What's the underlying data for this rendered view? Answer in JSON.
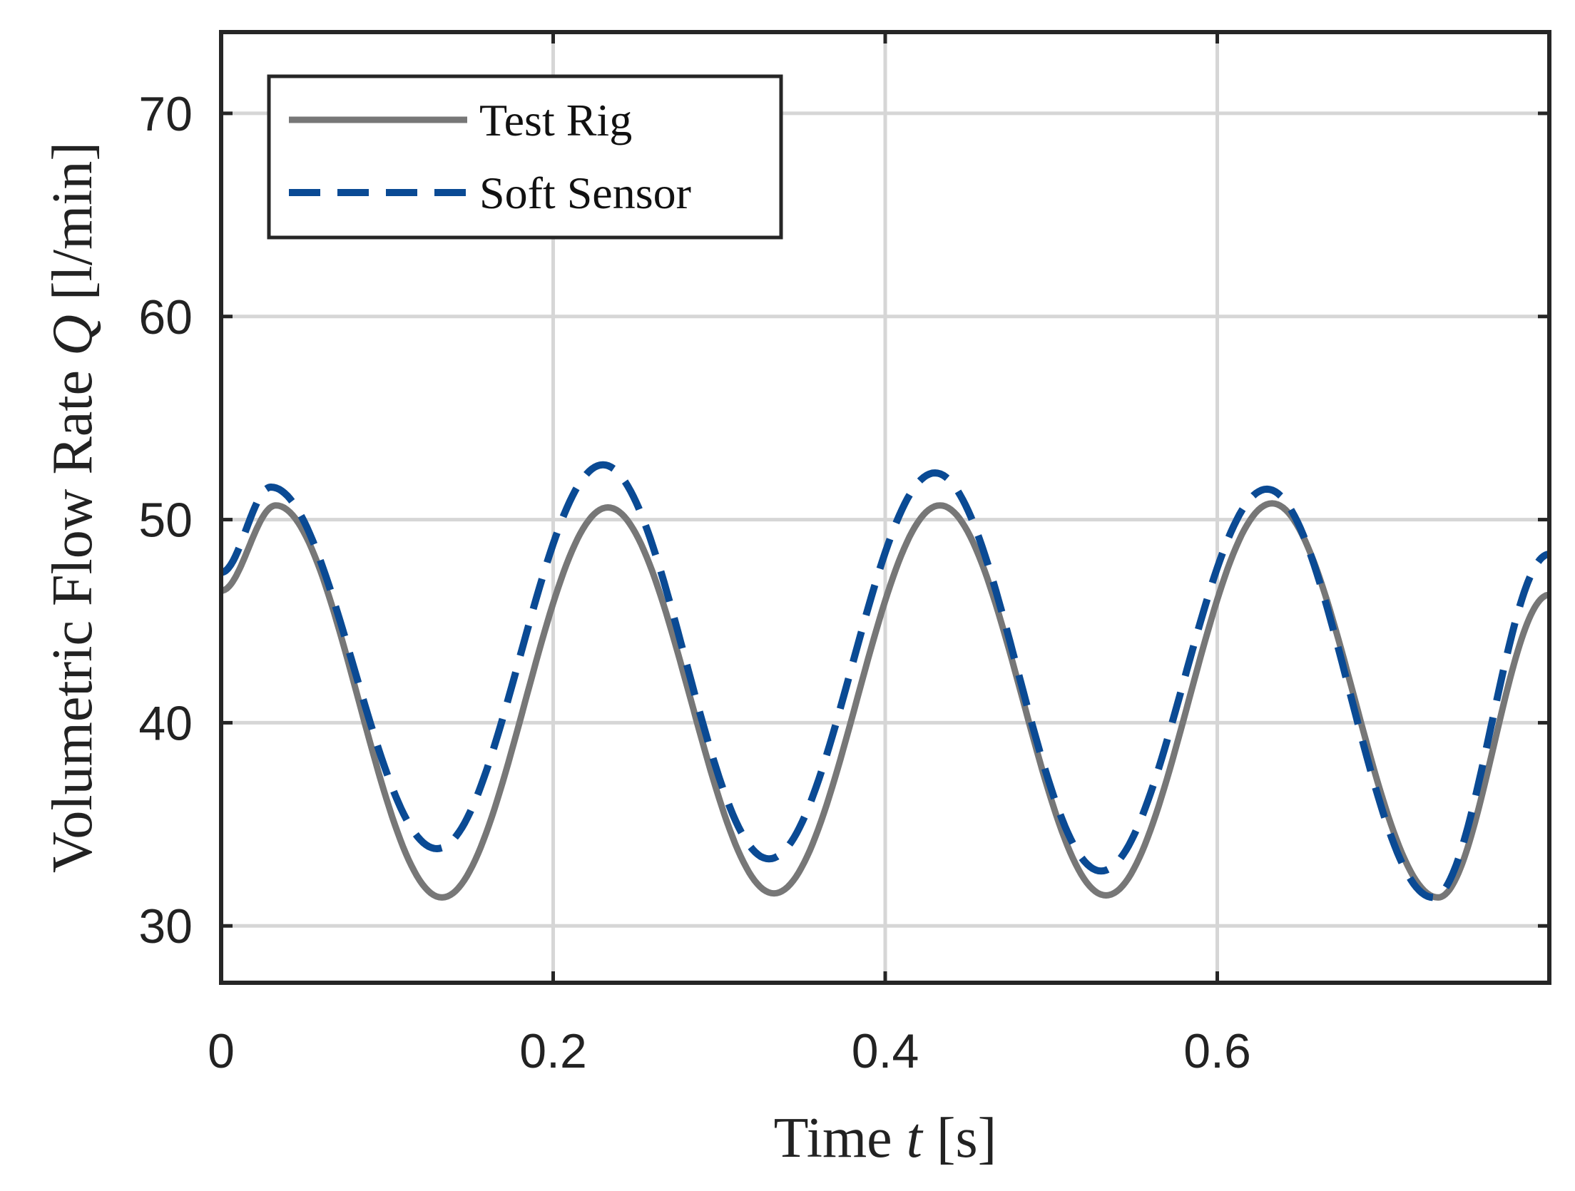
{
  "chart_data": {
    "type": "line",
    "title": "",
    "xlabel": {
      "prefix": "Time ",
      "var": "t",
      "suffix": " [s]"
    },
    "ylabel": {
      "prefix": "Volumetric Flow Rate ",
      "var": "Q",
      "suffix": " [l/min]"
    },
    "xlim": [
      0,
      0.8
    ],
    "ylim": [
      27.2,
      74.0
    ],
    "xticks": [
      0,
      0.2,
      0.4,
      0.6
    ],
    "xtick_labels": [
      "0",
      "0.2",
      "0.4",
      "0.6"
    ],
    "yticks": [
      30,
      40,
      50,
      60,
      70
    ],
    "ytick_labels": [
      "30",
      "40",
      "50",
      "60",
      "70"
    ],
    "grid": true,
    "legend_position": "top-left",
    "series": [
      {
        "name": "Test Rig",
        "style": "solid",
        "color": "#777777",
        "x": [
          0,
          0.033,
          0.133,
          0.233,
          0.333,
          0.433,
          0.533,
          0.633,
          0.733,
          0.8
        ],
        "y": [
          46.5,
          50.7,
          31.4,
          50.6,
          31.6,
          50.7,
          31.5,
          50.8,
          31.4,
          46.3
        ]
      },
      {
        "name": "Soft Sensor",
        "style": "dashed",
        "color": "#0a4a94",
        "x": [
          0,
          0.03,
          0.13,
          0.23,
          0.33,
          0.43,
          0.53,
          0.63,
          0.73,
          0.8
        ],
        "y": [
          47.4,
          51.6,
          33.8,
          52.7,
          33.3,
          52.3,
          32.7,
          51.5,
          31.4,
          48.3
        ]
      }
    ]
  }
}
